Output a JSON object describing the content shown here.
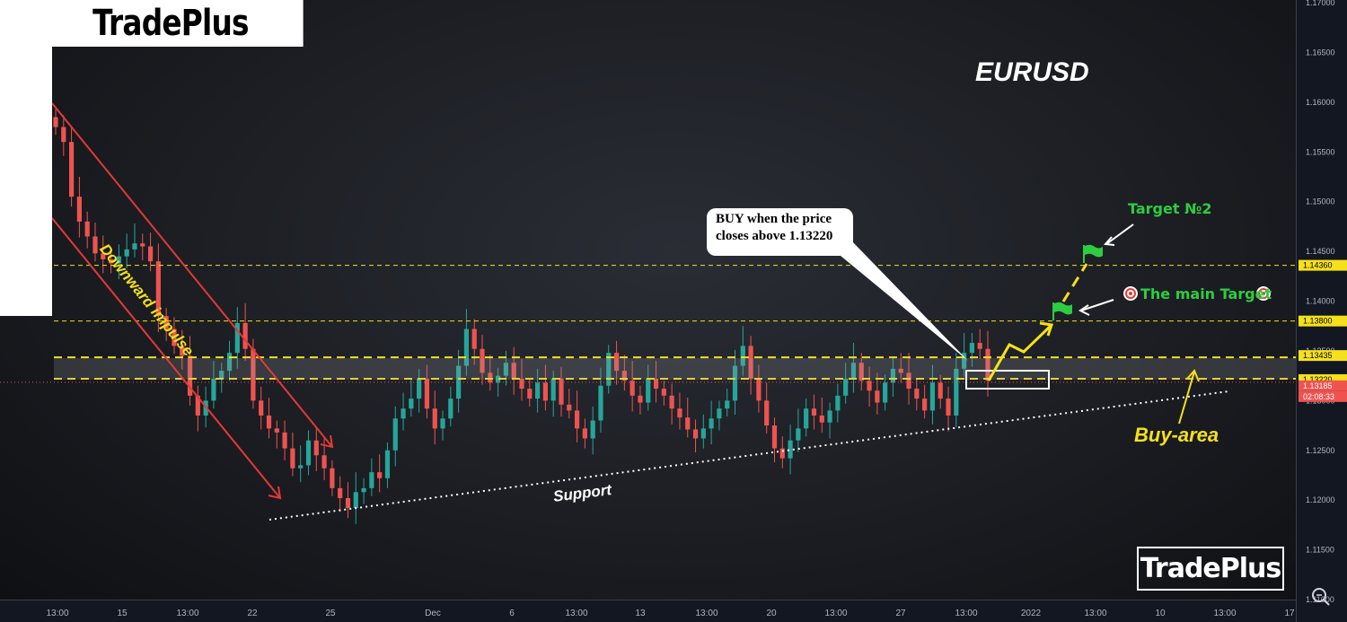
{
  "brand": {
    "top_logo": "TradePlus",
    "bottom_logo": "TradePlus"
  },
  "symbol": "EURUSD",
  "annotations": {
    "impulse_label": "Downward impulse",
    "support_label": "Support",
    "buy_area_label": "Buy-area",
    "callout_line1": "BUY when the price",
    "callout_line2": "closes above 1.13220",
    "target1": "The main Target",
    "target2": "Target №2"
  },
  "colors": {
    "bull": "#26a69a",
    "bear": "#ef5350",
    "level": "#f5e11a",
    "target_green": "#2ecc40",
    "channel": "#e53935"
  },
  "icons": [
    "target-icon",
    "flag-icon",
    "zoom-icon"
  ],
  "chart_data": {
    "type": "candlestick",
    "title": "EURUSD",
    "ylim": [
      1.11,
      1.17
    ],
    "y_ticks": [
      "1.17000",
      "1.16500",
      "1.16000",
      "1.15500",
      "1.15000",
      "1.14500",
      "1.14000",
      "1.13500",
      "1.13000",
      "1.12500",
      "1.12000",
      "1.11500",
      "1.11000"
    ],
    "x_ticks": [
      "13:00",
      "15",
      "13:00",
      "22",
      "25",
      "Dec",
      "6",
      "13:00",
      "13",
      "13:00",
      "20",
      "13:00",
      "27",
      "13:00",
      "2022",
      "13:00",
      "10",
      "13:00",
      "17"
    ],
    "price_labels": [
      {
        "value": "1.14360",
        "color": "#f5e11a"
      },
      {
        "value": "1.13800",
        "color": "#f5e11a"
      },
      {
        "value": "1.13435",
        "color": "#f5e11a"
      },
      {
        "value": "1.13220",
        "color": "#f5e11a"
      },
      {
        "value": "1.13185",
        "color": "#ef5350"
      },
      {
        "value": "02:08:33",
        "color": "#ef5350"
      }
    ],
    "levels": [
      1.1436,
      1.138,
      1.13435,
      1.1322
    ],
    "current_price": 1.13185,
    "support_line": {
      "from": [
        "Nov 22",
        1.1176
      ],
      "to": [
        "Jan 17",
        1.1305
      ]
    },
    "closes": [
      1.1575,
      1.156,
      1.1505,
      1.148,
      1.1465,
      1.1448,
      1.1442,
      1.1438,
      1.1445,
      1.1452,
      1.1458,
      1.1455,
      1.144,
      1.1385,
      1.1372,
      1.1355,
      1.1345,
      1.1305,
      1.1285,
      1.13,
      1.1322,
      1.133,
      1.1348,
      1.1378,
      1.1352,
      1.13,
      1.1285,
      1.1272,
      1.1268,
      1.1252,
      1.1232,
      1.1235,
      1.126,
      1.1245,
      1.1232,
      1.1212,
      1.1202,
      1.1192,
      1.1208,
      1.1212,
      1.1228,
      1.1222,
      1.125,
      1.1282,
      1.1292,
      1.1302,
      1.1322,
      1.1292,
      1.1272,
      1.1282,
      1.1302,
      1.1335,
      1.1372,
      1.1352,
      1.1328,
      1.1318,
      1.1325,
      1.1338,
      1.1322,
      1.1312,
      1.1302,
      1.1318,
      1.13,
      1.1322,
      1.1296,
      1.129,
      1.1272,
      1.1262,
      1.128,
      1.1315,
      1.1348,
      1.133,
      1.132,
      1.1305,
      1.1298,
      1.1322,
      1.1312,
      1.1305,
      1.1292,
      1.1283,
      1.1271,
      1.1262,
      1.1272,
      1.1282,
      1.1292,
      1.13,
      1.1335,
      1.1355,
      1.1322,
      1.13,
      1.1275,
      1.1252,
      1.1242,
      1.126,
      1.1272,
      1.1292,
      1.1285,
      1.1278,
      1.129,
      1.1305,
      1.1322,
      1.1338,
      1.132,
      1.131,
      1.1298,
      1.1318,
      1.1332,
      1.1328,
      1.1312,
      1.1302,
      1.129,
      1.1318,
      1.1302,
      1.1285,
      1.1332,
      1.1348,
      1.1358,
      1.1352,
      1.132
    ]
  }
}
